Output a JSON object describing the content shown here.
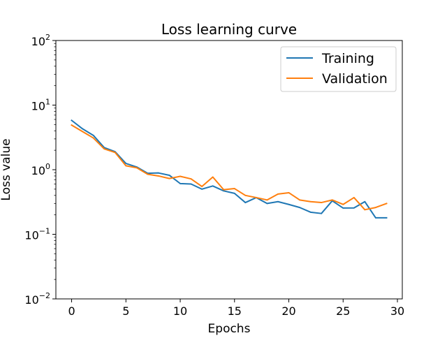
{
  "chart_data": {
    "type": "line",
    "title": "Loss learning curve",
    "xlabel": "Epochs",
    "ylabel": "Loss value",
    "xlim": [
      -1.45,
      30.45
    ],
    "ylim": [
      0.01,
      100
    ],
    "y_scale": "log",
    "grid": false,
    "legend_position": "top-right",
    "x_ticks": [
      0,
      5,
      10,
      15,
      20,
      25,
      30
    ],
    "x_tick_labels": [
      "0",
      "5",
      "10",
      "15",
      "20",
      "25",
      "30"
    ],
    "y_ticks": [
      {
        "value": 0.01,
        "base": "10",
        "exp": "−2"
      },
      {
        "value": 0.1,
        "base": "10",
        "exp": "−1"
      },
      {
        "value": 1,
        "base": "10",
        "exp": "0"
      },
      {
        "value": 10,
        "base": "10",
        "exp": "1"
      },
      {
        "value": 100,
        "base": "10",
        "exp": "2"
      }
    ],
    "x": [
      0,
      1,
      2,
      3,
      4,
      5,
      6,
      7,
      8,
      9,
      10,
      11,
      12,
      13,
      14,
      15,
      16,
      17,
      18,
      19,
      20,
      21,
      22,
      23,
      24,
      25,
      26,
      27,
      28,
      29
    ],
    "series": [
      {
        "name": "Training",
        "color": "#1f77b4",
        "values": [
          5.8,
          4.3,
          3.4,
          2.2,
          1.9,
          1.25,
          1.1,
          0.88,
          0.89,
          0.82,
          0.61,
          0.6,
          0.5,
          0.56,
          0.47,
          0.43,
          0.31,
          0.37,
          0.3,
          0.32,
          0.29,
          0.26,
          0.22,
          0.21,
          0.33,
          0.255,
          0.256,
          0.32,
          0.18,
          0.18
        ]
      },
      {
        "name": "Validation",
        "color": "#ff7f0e",
        "values": [
          4.9,
          3.9,
          3.1,
          2.1,
          1.85,
          1.15,
          1.07,
          0.85,
          0.8,
          0.73,
          0.79,
          0.72,
          0.55,
          0.77,
          0.49,
          0.51,
          0.4,
          0.37,
          0.34,
          0.42,
          0.44,
          0.34,
          0.32,
          0.31,
          0.34,
          0.29,
          0.37,
          0.24,
          0.26,
          0.3
        ]
      }
    ]
  }
}
